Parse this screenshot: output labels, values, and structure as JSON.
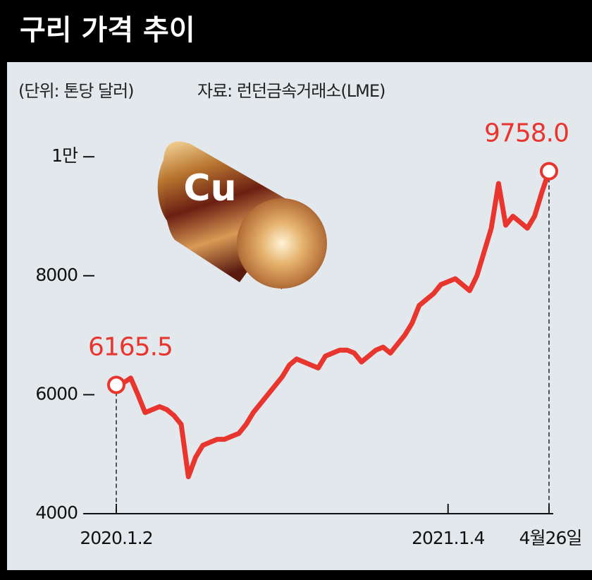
{
  "chart_data": {
    "type": "line",
    "title": "구리 가격 추이",
    "unit": "(단위: 톤당 달러)",
    "source": "자료: 런던금속거래소(LME)",
    "cu_label": "Cu",
    "categories": [
      "2020.1.2",
      null,
      null,
      null,
      null,
      null,
      null,
      null,
      null,
      null,
      null,
      null,
      null,
      null,
      null,
      null,
      null,
      null,
      null,
      null,
      null,
      null,
      null,
      null,
      null,
      null,
      null,
      null,
      null,
      null,
      null,
      null,
      null,
      null,
      null,
      null,
      null,
      null,
      null,
      null,
      null,
      null,
      null,
      null,
      null,
      null,
      "2021.1.4",
      null,
      null,
      null,
      null,
      null,
      null,
      null,
      null,
      null,
      null,
      null,
      null,
      null,
      "4월26일"
    ],
    "values": [
      6165.5,
      6200,
      6280,
      6000,
      5700,
      5750,
      5800,
      5750,
      5650,
      5500,
      4620,
      4950,
      5150,
      5200,
      5250,
      5250,
      5300,
      5350,
      5500,
      5700,
      5850,
      6000,
      6150,
      6300,
      6500,
      6600,
      6550,
      6500,
      6450,
      6650,
      6700,
      6750,
      6750,
      6700,
      6550,
      6650,
      6750,
      6800,
      6700,
      6850,
      7000,
      7200,
      7500,
      7600,
      7700,
      7850,
      7900,
      7950,
      7850,
      7750,
      8000,
      8400,
      8800,
      9550,
      8850,
      9000,
      8900,
      8800,
      9000,
      9400,
      9758
    ],
    "value_labels": [
      "6165.5",
      null,
      null,
      null,
      null,
      null,
      null,
      null,
      null,
      null,
      null,
      null,
      null,
      null,
      null,
      null,
      null,
      null,
      null,
      null,
      null,
      null,
      null,
      null,
      null,
      null,
      null,
      null,
      null,
      null,
      null,
      null,
      null,
      null,
      null,
      null,
      null,
      null,
      null,
      null,
      null,
      null,
      null,
      null,
      null,
      null,
      null,
      null,
      null,
      null,
      null,
      null,
      null,
      null,
      null,
      null,
      null,
      null,
      null,
      null,
      "9758.0"
    ],
    "color": "#e8352e",
    "ylim": [
      4000,
      10800
    ],
    "yticks": [
      4000,
      6000,
      8000,
      {
        "value": 10000,
        "label": "1만"
      }
    ]
  }
}
